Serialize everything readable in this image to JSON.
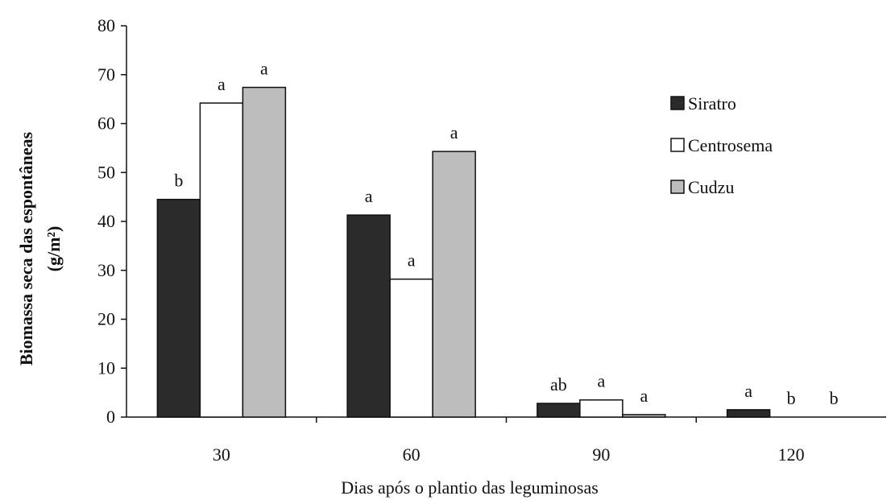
{
  "chart_data": {
    "type": "bar",
    "title": "",
    "xlabel": "Dias após o plantio das leguminosas",
    "ylabel_line1": "Biomassa seca das espontâneas",
    "ylabel_line2": "(g/m²)",
    "categories": [
      "30",
      "60",
      "90",
      "120"
    ],
    "ylim": [
      0,
      80
    ],
    "yticks": [
      0,
      10,
      20,
      30,
      40,
      50,
      60,
      70,
      80
    ],
    "legend_position": "right",
    "grid": false,
    "series": [
      {
        "name": "Siratro",
        "color": "#2b2b2b",
        "values": [
          44.5,
          41.3,
          2.8,
          1.5
        ],
        "letters": [
          "b",
          "a",
          "ab",
          "a"
        ]
      },
      {
        "name": "Centrosema",
        "color": "#ffffff",
        "values": [
          64.2,
          28.2,
          3.5,
          0
        ],
        "letters": [
          "a",
          "a",
          "a",
          "b"
        ]
      },
      {
        "name": "Cudzu",
        "color": "#bdbdbd",
        "values": [
          67.4,
          54.3,
          0.5,
          0
        ],
        "letters": [
          "a",
          "a",
          "a",
          "b"
        ]
      }
    ]
  }
}
